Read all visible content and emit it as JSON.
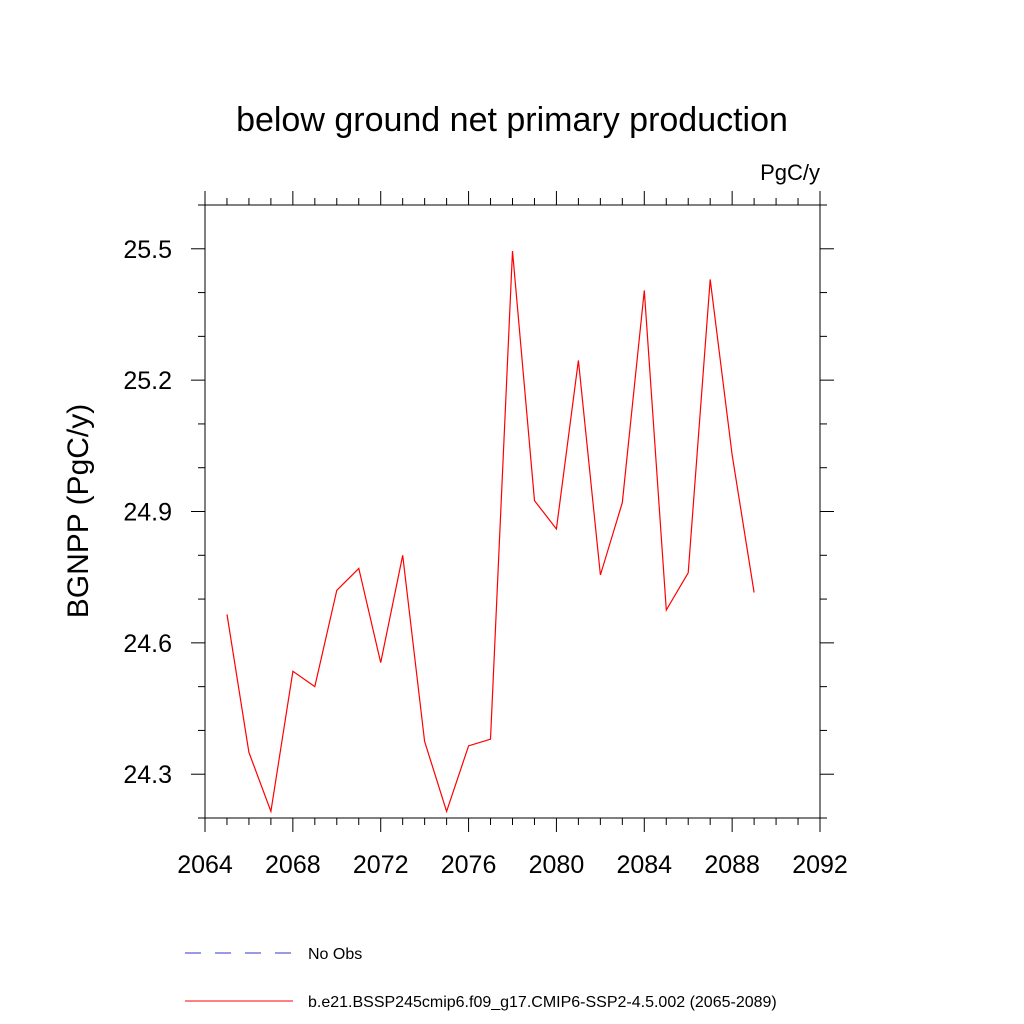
{
  "chart_data": {
    "type": "line",
    "title": "below ground net primary production",
    "units": "PgC/y",
    "ylabel": "BGNPP  (PgC/y)",
    "xlabel": "",
    "xlim": [
      2064,
      2092
    ],
    "ylim": [
      24.2,
      25.6
    ],
    "xticks": [
      2064,
      2068,
      2072,
      2076,
      2080,
      2084,
      2088,
      2092
    ],
    "yticks": [
      24.3,
      24.6,
      24.9,
      25.2,
      25.5
    ],
    "xtick_labels": [
      "2064",
      "2068",
      "2072",
      "2076",
      "2080",
      "2084",
      "2088",
      "2092"
    ],
    "ytick_labels": [
      "24.3",
      "24.6",
      "24.9",
      "25.2",
      "25.5"
    ],
    "grid": false,
    "legend_position": "bottom",
    "series": [
      {
        "name": "No Obs",
        "color": "#3333cc",
        "dash": "dashed",
        "x": [],
        "y": []
      },
      {
        "name": "b.e21.BSSP245cmip6.f09_g17.CMIP6-SSP2-4.5.002 (2065-2089)",
        "color": "#ff0000",
        "dash": "solid",
        "x": [
          2065,
          2066,
          2067,
          2068,
          2069,
          2070,
          2071,
          2072,
          2073,
          2074,
          2075,
          2076,
          2077,
          2078,
          2079,
          2080,
          2081,
          2082,
          2083,
          2084,
          2085,
          2086,
          2087,
          2088,
          2089
        ],
        "y": [
          24.665,
          24.35,
          24.215,
          24.535,
          24.5,
          24.72,
          24.77,
          24.555,
          24.8,
          24.375,
          24.215,
          24.365,
          24.38,
          25.495,
          24.925,
          24.86,
          25.245,
          24.755,
          24.92,
          25.405,
          24.675,
          24.76,
          25.43,
          25.03,
          24.715
        ]
      }
    ]
  }
}
